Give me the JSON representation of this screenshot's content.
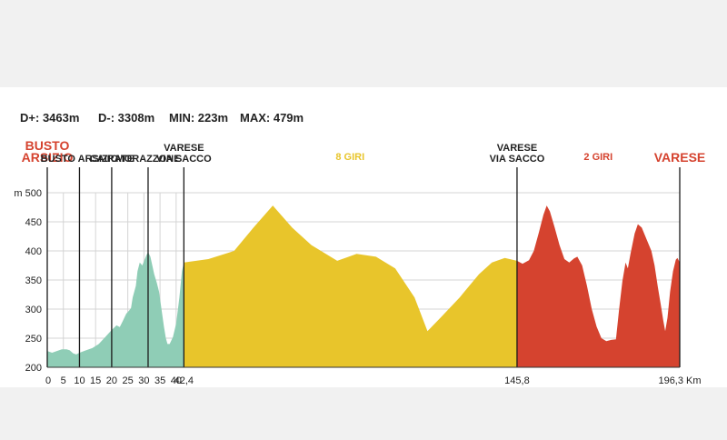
{
  "stats": [
    {
      "label": "D+:",
      "value": "3463m"
    },
    {
      "label": "D-:",
      "value": "3308m"
    },
    {
      "label": "MIN:",
      "value": "223m"
    },
    {
      "label": "MAX:",
      "value": "479m"
    }
  ],
  "chart_data": {
    "type": "area",
    "xlabel": "",
    "ylabel": "",
    "y_unit_label": "m",
    "ylim": [
      200,
      500
    ],
    "xlim": [
      0,
      196.3
    ],
    "y_ticks": [
      200,
      250,
      300,
      350,
      400,
      450,
      500
    ],
    "x_ticks": [
      {
        "value": 0,
        "label": "0"
      },
      {
        "value": 5,
        "label": "5"
      },
      {
        "value": 10,
        "label": "10"
      },
      {
        "value": 15,
        "label": "15"
      },
      {
        "value": 20,
        "label": "20"
      },
      {
        "value": 25,
        "label": "25"
      },
      {
        "value": 30,
        "label": "30"
      },
      {
        "value": 35,
        "label": "35"
      },
      {
        "value": 40,
        "label": "40"
      },
      {
        "value": 42.4,
        "label": "42,4"
      },
      {
        "value": 145.8,
        "label": "145,8"
      },
      {
        "value": 196.3,
        "label": "196,3 Km"
      }
    ],
    "grid": true,
    "segments": [
      {
        "color": "#8fcdb6",
        "points": [
          [
            0,
            228
          ],
          [
            1.5,
            225
          ],
          [
            3,
            228
          ],
          [
            4.5,
            231
          ],
          [
            6,
            231
          ],
          [
            7,
            229
          ],
          [
            8,
            224
          ],
          [
            9,
            222
          ],
          [
            10,
            225
          ],
          [
            12,
            229
          ],
          [
            14,
            233
          ],
          [
            16,
            240
          ],
          [
            18,
            252
          ],
          [
            20,
            264
          ],
          [
            21.5,
            272
          ],
          [
            22.5,
            269
          ],
          [
            23.5,
            280
          ],
          [
            24.5,
            292
          ],
          [
            25.5,
            298
          ],
          [
            26,
            302
          ],
          [
            26.5,
            320
          ],
          [
            27.5,
            340
          ],
          [
            28,
            365
          ],
          [
            28.7,
            380
          ],
          [
            29.5,
            375
          ],
          [
            30.2,
            385
          ],
          [
            30.8,
            393
          ],
          [
            31.3,
            398
          ],
          [
            32,
            390
          ],
          [
            32.5,
            378
          ],
          [
            33.2,
            360
          ],
          [
            34,
            345
          ],
          [
            34.7,
            330
          ],
          [
            35.2,
            310
          ],
          [
            35.7,
            290
          ],
          [
            36.2,
            270
          ],
          [
            36.8,
            250
          ],
          [
            37.3,
            240
          ],
          [
            38,
            240
          ],
          [
            39,
            252
          ],
          [
            40,
            275
          ],
          [
            41,
            320
          ],
          [
            41.8,
            365
          ],
          [
            42.4,
            380
          ]
        ]
      },
      {
        "color": "#e8c52b",
        "points": [
          [
            42.4,
            380
          ],
          [
            50,
            386
          ],
          [
            58,
            400
          ],
          [
            64,
            440
          ],
          [
            70,
            478
          ],
          [
            76,
            440
          ],
          [
            82,
            410
          ],
          [
            90,
            383
          ],
          [
            96,
            395
          ],
          [
            102,
            390
          ],
          [
            108,
            370
          ],
          [
            114,
            320
          ],
          [
            118,
            262
          ],
          [
            122,
            285
          ],
          [
            128,
            320
          ],
          [
            134,
            360
          ],
          [
            138,
            380
          ],
          [
            142,
            388
          ],
          [
            145.8,
            383
          ]
        ]
      },
      {
        "color": "#d5432f",
        "points": [
          [
            145.8,
            383
          ],
          [
            147.5,
            378
          ],
          [
            149.5,
            384
          ],
          [
            151,
            400
          ],
          [
            152.5,
            430
          ],
          [
            154,
            462
          ],
          [
            155,
            478
          ],
          [
            156,
            468
          ],
          [
            157.5,
            440
          ],
          [
            159,
            410
          ],
          [
            160.5,
            386
          ],
          [
            162,
            380
          ],
          [
            163.5,
            387
          ],
          [
            164.5,
            390
          ],
          [
            166,
            375
          ],
          [
            167.5,
            340
          ],
          [
            169,
            300
          ],
          [
            170.5,
            270
          ],
          [
            172,
            250
          ],
          [
            173.5,
            245
          ],
          [
            175,
            247
          ],
          [
            176.5,
            248
          ],
          [
            177.5,
            300
          ],
          [
            178.5,
            348
          ],
          [
            179.5,
            380
          ],
          [
            180.2,
            370
          ],
          [
            181,
            395
          ],
          [
            182.3,
            430
          ],
          [
            183.3,
            446
          ],
          [
            184.5,
            440
          ],
          [
            186,
            420
          ],
          [
            187.5,
            400
          ],
          [
            188.5,
            375
          ],
          [
            189.5,
            338
          ],
          [
            190.5,
            305
          ],
          [
            191.2,
            280
          ],
          [
            191.8,
            262
          ],
          [
            192.5,
            285
          ],
          [
            193.3,
            330
          ],
          [
            194.2,
            365
          ],
          [
            195.1,
            385
          ],
          [
            195.6,
            388
          ],
          [
            196.3,
            380
          ]
        ]
      }
    ]
  },
  "locations": [
    {
      "x_km": 0,
      "lines": [
        "BUSTO",
        "ARSIZIO"
      ],
      "style": "endpoint"
    },
    {
      "x_km": 10,
      "lines": [
        "BUSTO ARSIZIO"
      ],
      "style": "normal"
    },
    {
      "x_km": 20,
      "lines": [
        "CAIRATE"
      ],
      "style": "normal"
    },
    {
      "x_km": 31.3,
      "lines": [
        "MORAZZONE"
      ],
      "style": "normal"
    },
    {
      "x_km": 42.4,
      "lines": [
        "VARESE",
        "VIA SACCO"
      ],
      "style": "normal"
    },
    {
      "x_km": 145.8,
      "lines": [
        "VARESE",
        "VIA SACCO"
      ],
      "style": "normal"
    },
    {
      "x_km": 196.3,
      "lines": [
        "VARESE"
      ],
      "style": "endpoint"
    }
  ],
  "laps": [
    {
      "center_km": 94,
      "label": "8 GIRI",
      "color_style": "giri-yellow"
    },
    {
      "center_km": 171,
      "label": "2 GIRI",
      "color_style": "giri-red"
    }
  ]
}
